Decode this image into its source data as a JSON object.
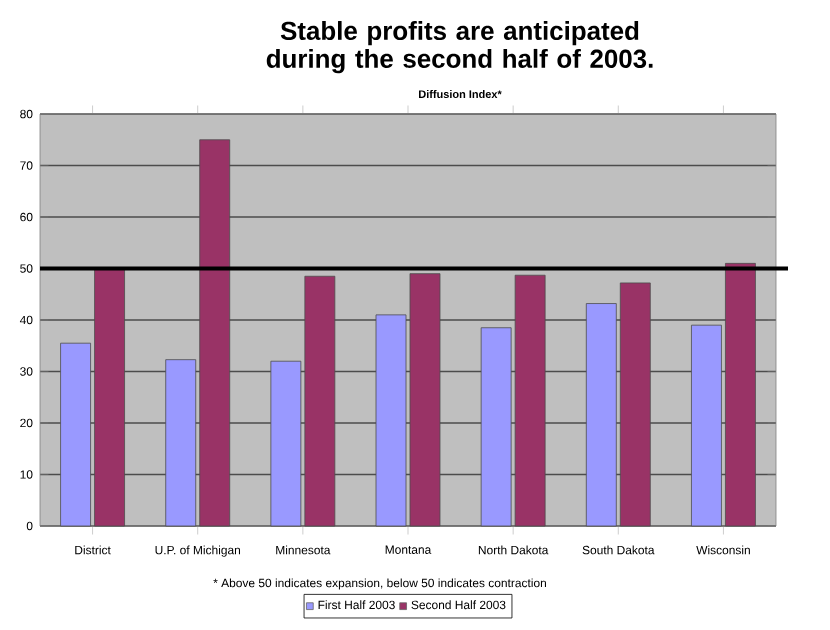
{
  "chart_data": {
    "type": "bar",
    "title": "Stable profits are anticipated during the second half of 2003.",
    "subtitle": "Diffusion Index*",
    "categories": [
      "District",
      "U.P. of Michigan",
      "Minnesota",
      "Montana",
      "North Dakota",
      "South Dakota",
      "Wisconsin"
    ],
    "series": [
      {
        "name": "First Half 2003",
        "color": "#9999ff",
        "values": [
          35.5,
          32.3,
          32,
          41,
          38.5,
          43.2,
          39
        ]
      },
      {
        "name": "Second Half 2003",
        "color": "#993366",
        "values": [
          50,
          75,
          48.5,
          49,
          48.7,
          47.2,
          51
        ]
      }
    ],
    "ylim": [
      0,
      80
    ],
    "yticks": [
      0,
      10,
      20,
      30,
      40,
      50,
      60,
      70,
      80
    ],
    "grid": "y",
    "legend": "bottom",
    "ref_lines": [
      {
        "axis": "y",
        "value": 50,
        "color": "#000000"
      }
    ],
    "annotations": [
      "* Above 50 indicates expansion, below 50 indicates contraction"
    ]
  }
}
